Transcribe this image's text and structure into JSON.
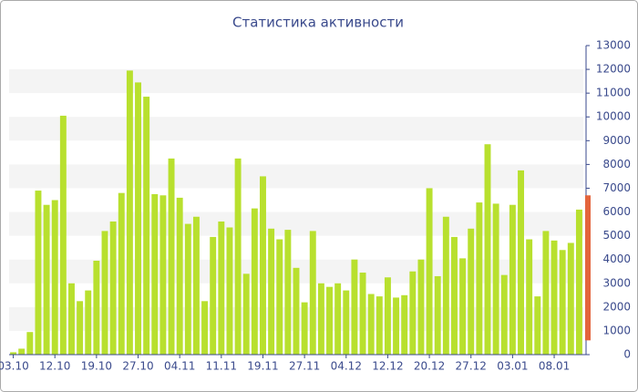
{
  "chart_data": {
    "type": "bar",
    "title": "Статистика активности",
    "categories": [
      "03.10",
      null,
      null,
      null,
      null,
      "12.10",
      null,
      null,
      null,
      null,
      "19.10",
      null,
      null,
      null,
      null,
      "27.10",
      null,
      null,
      null,
      null,
      "04.11",
      null,
      null,
      null,
      null,
      "11.11",
      null,
      null,
      null,
      null,
      "19.11",
      null,
      null,
      null,
      null,
      "27.11",
      null,
      null,
      null,
      null,
      "04.12",
      null,
      null,
      null,
      null,
      "12.12",
      null,
      null,
      null,
      null,
      "20.12",
      null,
      null,
      null,
      null,
      "27.12",
      null,
      null,
      null,
      null,
      "03.01",
      null,
      null,
      null,
      null,
      "08.01",
      null,
      null,
      null
    ],
    "values": [
      100,
      250,
      950,
      6900,
      6300,
      6500,
      10050,
      3000,
      2250,
      2700,
      3950,
      5200,
      5600,
      6800,
      11950,
      11450,
      10850,
      6750,
      6700,
      8250,
      6600,
      5500,
      5800,
      2250,
      4950,
      5600,
      5350,
      8250,
      3400,
      6150,
      7500,
      5300,
      4850,
      5250,
      3650,
      2200,
      5200,
      3000,
      2850,
      3000,
      2700,
      4000,
      3450,
      2550,
      2450,
      3250,
      2400,
      2500,
      3500,
      4000,
      7000,
      3300,
      5800,
      4950,
      4050,
      5300,
      6400,
      8850,
      6350,
      3350,
      6300,
      7750,
      4850,
      2450,
      5200,
      4800,
      4400,
      4700,
      6100
    ],
    "color": "#b8e02e",
    "range_marker": {
      "low": 600,
      "high": 6700,
      "color": "#e4643c"
    },
    "ylim": [
      0,
      13000
    ],
    "yticks": [
      0,
      1000,
      2000,
      3000,
      4000,
      5000,
      6000,
      7000,
      8000,
      9000,
      10000,
      11000,
      12000,
      13000
    ],
    "grid_bands": true
  }
}
